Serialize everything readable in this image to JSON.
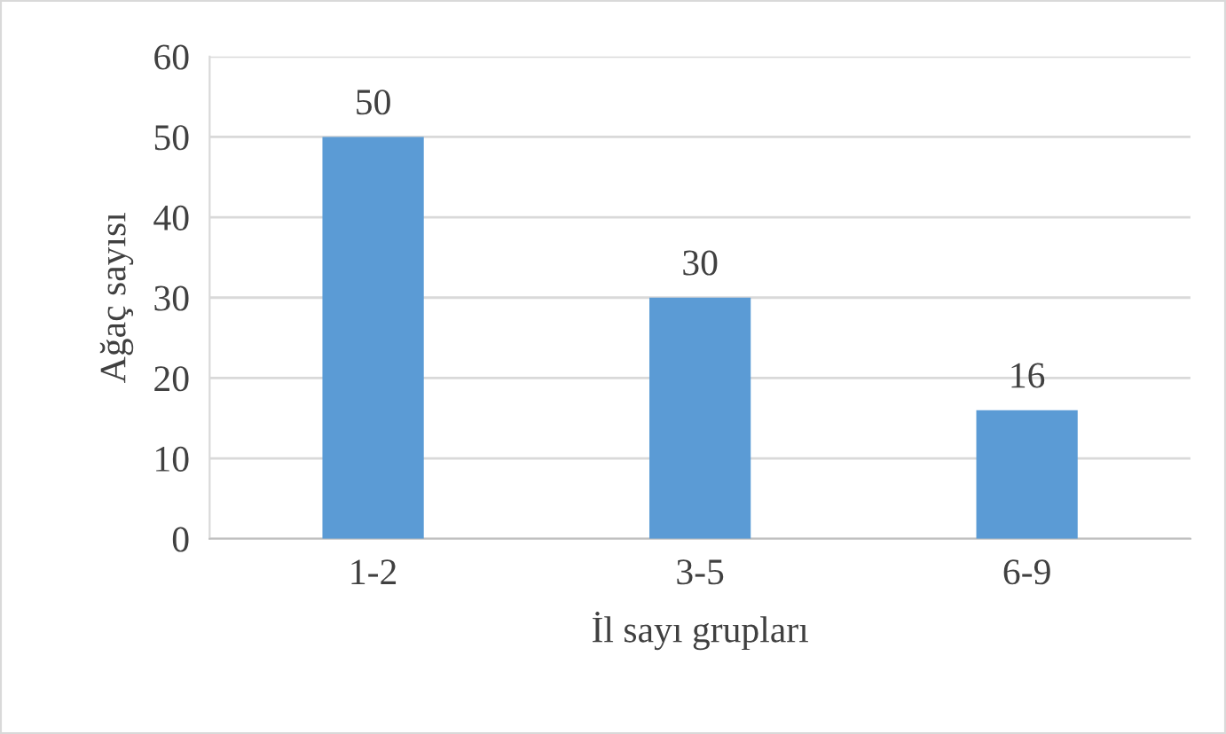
{
  "chart_data": {
    "type": "bar",
    "xlabel": "İl sayı grupları",
    "ylabel": "Ağaç sayısı",
    "categories": [
      "1-2",
      "3-5",
      "6-9"
    ],
    "values": [
      50,
      30,
      16
    ],
    "color": "#5b9bd5",
    "ylim": [
      0,
      60
    ],
    "yticks": [
      0,
      10,
      20,
      30,
      40,
      50,
      60
    ],
    "grid": "y",
    "data_labels": true
  }
}
